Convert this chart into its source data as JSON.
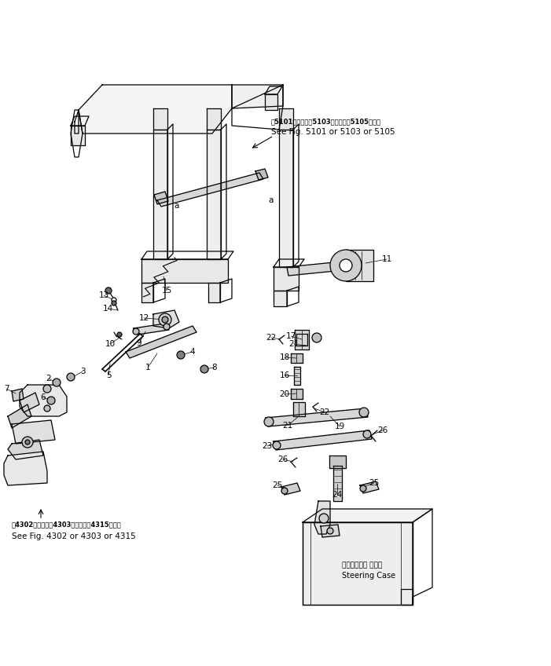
{
  "bg_color": "#ffffff",
  "line_color": "#000000",
  "fig_width": 7.01,
  "fig_height": 8.48,
  "dpi": 100,
  "annotation_top_jp": "第5101図または第5103図または第5105図参照",
  "annotation_top_en": "See Fig. 5101 or 5103 or 5105",
  "annotation_bot_jp": "第4302図または第4303図または第4315図参照",
  "annotation_bot_en": "See Fig. 4302 or 4303 or 4315",
  "steering_case_jp": "ステアリング ケース",
  "steering_case_en": "Steering Case"
}
